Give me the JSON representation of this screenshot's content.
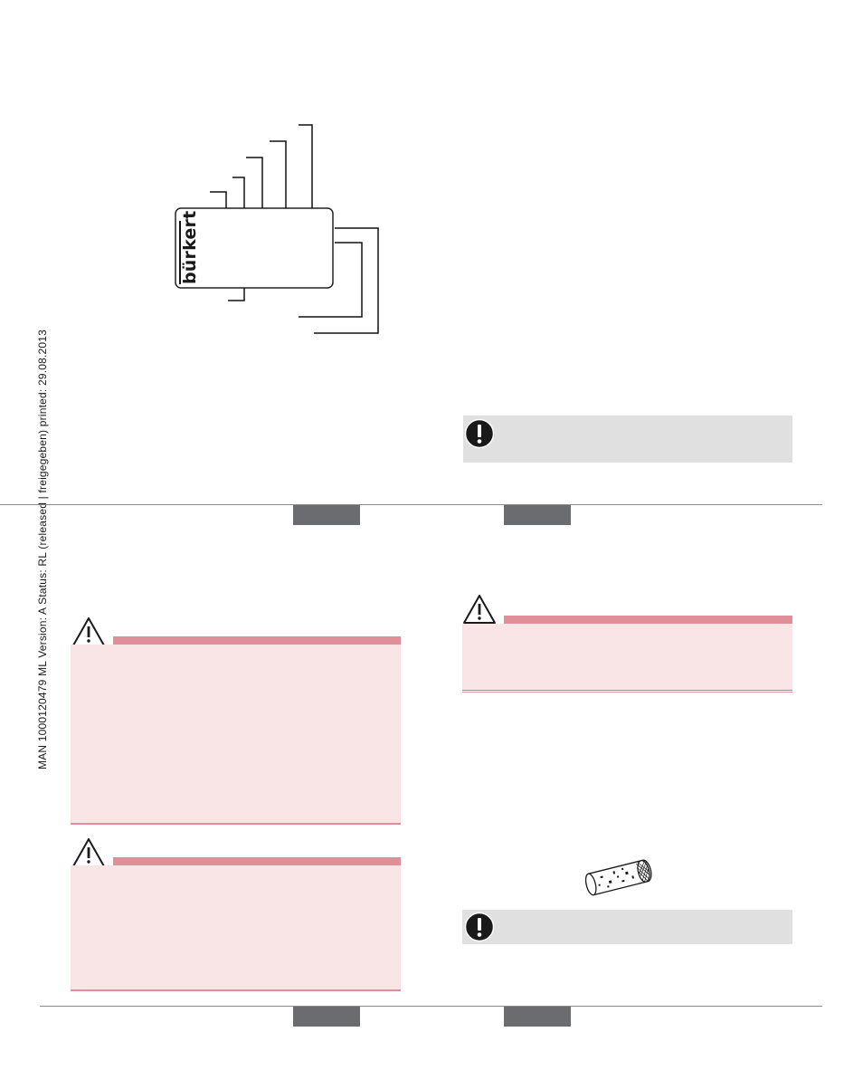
{
  "sidebar": {
    "document_info": "MAN  1000120479  ML  Version: A  Status: RL (released | freigegeben)  printed: 29.08.2013"
  },
  "nameplate": {
    "logo_text": "bürkert"
  },
  "icons": {
    "note": "exclamation-circle-icon",
    "warning": "warning-triangle-icon",
    "filter": "strainer-filter-icon"
  },
  "colors": {
    "warning_bar": "#e08f99",
    "warning_fill": "#f9e5e6",
    "note_fill": "#e0e0e0",
    "tab_fill": "#6b6c70"
  }
}
